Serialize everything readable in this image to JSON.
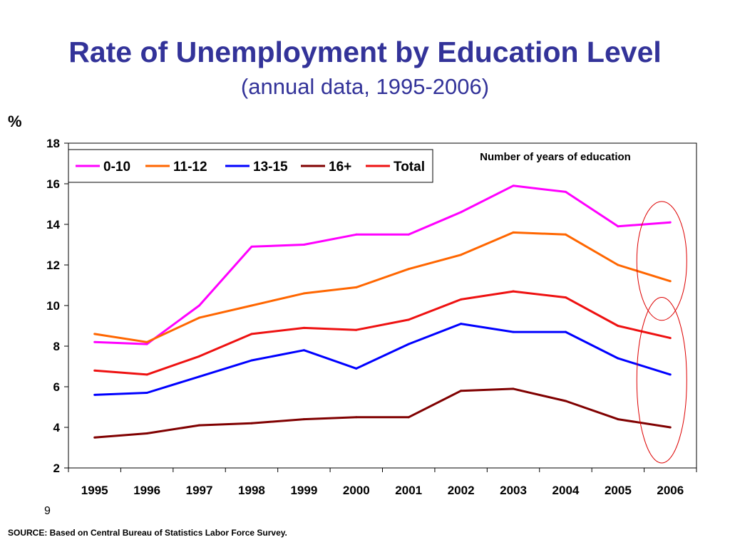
{
  "slide": {
    "page_number": "9",
    "source": "SOURCE: Based on Central Bureau of Statistics Labor Force Survey."
  },
  "chart_data": {
    "type": "line",
    "title": "Rate of Unemployment by Education Level",
    "subtitle": "(annual data, 1995-2006)",
    "ylabel": "%",
    "xlabel": "",
    "annotation": "Number of years of education",
    "ylim": [
      2,
      18
    ],
    "yticks": [
      2,
      4,
      6,
      8,
      10,
      12,
      14,
      16,
      18
    ],
    "x": [
      "1995",
      "1996",
      "1997",
      "1998",
      "1999",
      "2000",
      "2001",
      "2002",
      "2003",
      "2004",
      "2005",
      "2006"
    ],
    "legend_position": "top-left",
    "grid": false,
    "series": [
      {
        "name": "0-10",
        "color": "#ff00ff",
        "values": [
          8.2,
          8.1,
          10.0,
          12.9,
          13.0,
          13.5,
          13.5,
          14.6,
          15.9,
          15.6,
          13.9,
          14.1
        ]
      },
      {
        "name": "11-12",
        "color": "#ff6600",
        "values": [
          8.6,
          8.2,
          9.4,
          10.0,
          10.6,
          10.9,
          11.8,
          12.5,
          13.6,
          13.5,
          12.0,
          11.2
        ]
      },
      {
        "name": "13-15",
        "color": "#0000ff",
        "values": [
          5.6,
          5.7,
          6.5,
          7.3,
          7.8,
          6.9,
          8.1,
          9.1,
          8.7,
          8.7,
          7.4,
          6.6
        ]
      },
      {
        "name": "16+",
        "color": "#800000",
        "values": [
          3.5,
          3.7,
          4.1,
          4.2,
          4.4,
          4.5,
          4.5,
          5.8,
          5.9,
          5.3,
          4.4,
          4.0
        ]
      },
      {
        "name": "Total",
        "color": "#ee1111",
        "values": [
          6.8,
          6.6,
          7.5,
          8.6,
          8.9,
          8.8,
          9.3,
          10.3,
          10.7,
          10.4,
          9.0,
          8.4
        ]
      }
    ],
    "highlight_color": "#dd0000"
  }
}
